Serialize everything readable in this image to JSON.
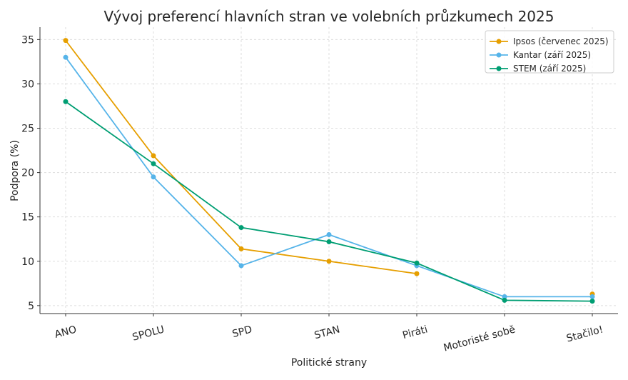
{
  "chart_data": {
    "type": "line",
    "title": "Vývoj preferencí hlavních stran ve volebních průzkumech 2025",
    "xlabel": "Politické strany",
    "ylabel": "Podpora (%)",
    "categories": [
      "ANO",
      "SPOLU",
      "SPD",
      "STAN",
      "Piráti",
      "Motoristé sobě",
      "Stačilo!"
    ],
    "ylim": [
      4.1,
      36.4
    ],
    "yticks": [
      5,
      10,
      15,
      20,
      25,
      30,
      35
    ],
    "grid": true,
    "legend_position": "top-right",
    "series": [
      {
        "name": "Ipsos (červenec 2025)",
        "color": "#E69F00",
        "values": [
          34.9,
          21.9,
          11.4,
          10.0,
          8.6,
          null,
          6.3
        ]
      },
      {
        "name": "Kantar (září 2025)",
        "color": "#56B4E9",
        "values": [
          33.0,
          19.5,
          9.5,
          13.0,
          9.5,
          6.0,
          6.0
        ]
      },
      {
        "name": "STEM (září 2025)",
        "color": "#009E73",
        "values": [
          28.0,
          21.0,
          13.8,
          12.2,
          9.8,
          5.6,
          5.5
        ]
      }
    ]
  }
}
